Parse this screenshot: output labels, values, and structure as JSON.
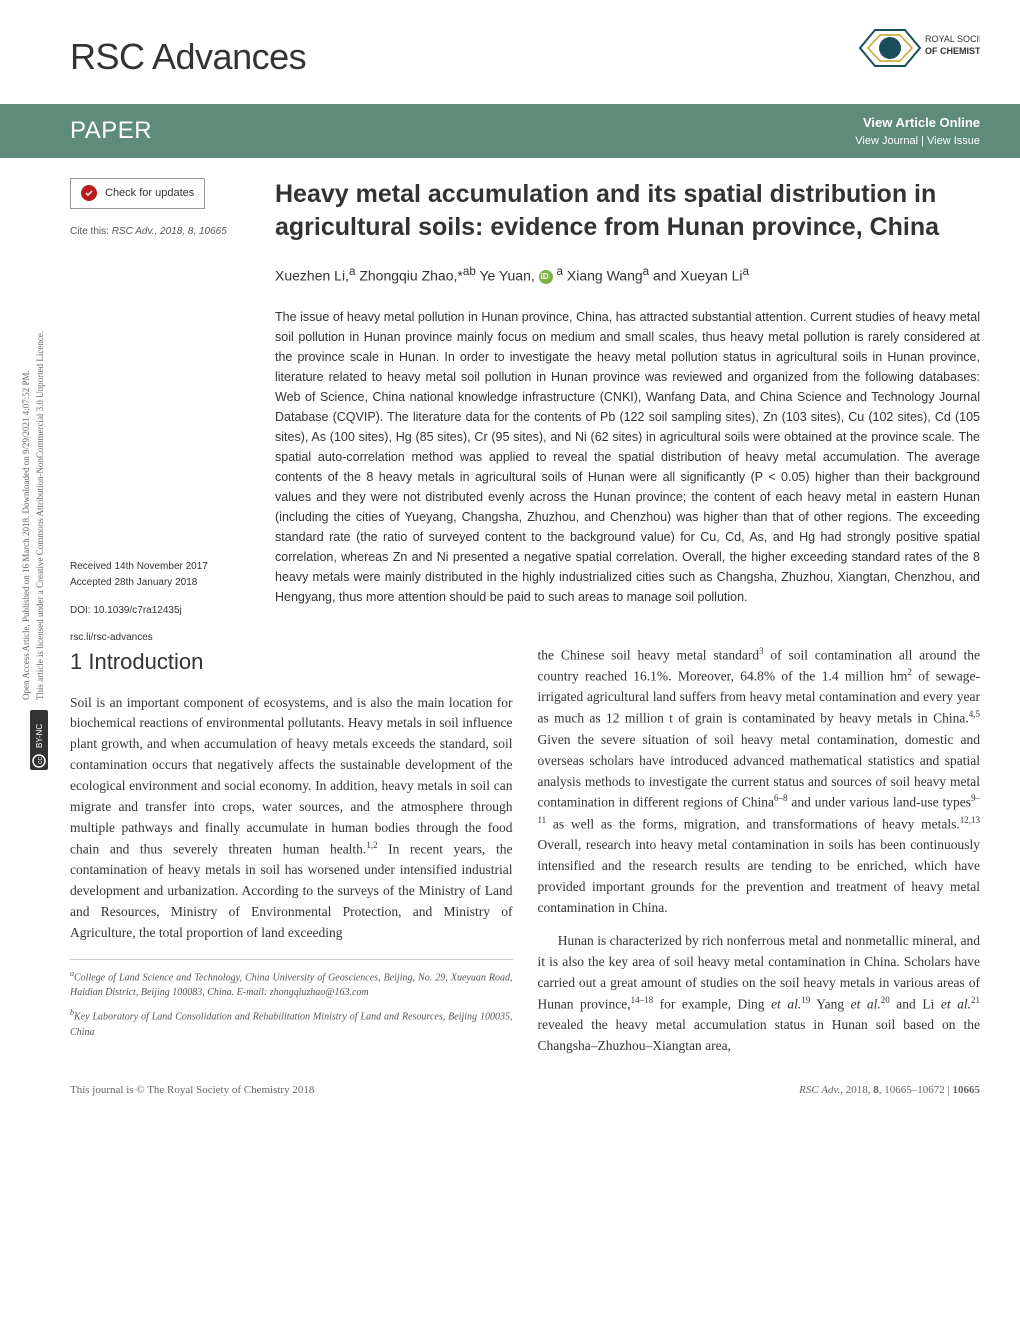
{
  "journal": {
    "title": "RSC Advances",
    "publisher_logo_text": "ROYAL SOCIETY OF CHEMISTRY"
  },
  "banner": {
    "label": "PAPER",
    "view_online": "View Article Online",
    "view_issue": "View Journal | View Issue",
    "bg_color": "#5f8b7a"
  },
  "sidebar": {
    "check_updates": "Check for updates",
    "cite_prefix": "Cite this:",
    "cite_text": "RSC Adv., 2018, 8, 10665",
    "received": "Received 14th November 2017",
    "accepted": "Accepted 28th January 2018",
    "doi": "DOI: 10.1039/c7ra12435j",
    "link": "rsc.li/rsc-advances"
  },
  "article": {
    "title": "Heavy metal accumulation and its spatial distribution in agricultural soils: evidence from Hunan province, China",
    "authors_html": "Xuezhen Li,<sup>a</sup> Zhongqiu Zhao,*<sup>ab</sup> Ye Yuan, <span class='orcid-icon'></span> <sup>a</sup> Xiang Wang<sup>a</sup> and Xueyan Li<sup>a</sup>",
    "abstract": "The issue of heavy metal pollution in Hunan province, China, has attracted substantial attention. Current studies of heavy metal soil pollution in Hunan province mainly focus on medium and small scales, thus heavy metal pollution is rarely considered at the province scale in Hunan. In order to investigate the heavy metal pollution status in agricultural soils in Hunan province, literature related to heavy metal soil pollution in Hunan province was reviewed and organized from the following databases: Web of Science, China national knowledge infrastructure (CNKI), Wanfang Data, and China Science and Technology Journal Database (CQVIP). The literature data for the contents of Pb (122 soil sampling sites), Zn (103 sites), Cu (102 sites), Cd (105 sites), As (100 sites), Hg (85 sites), Cr (95 sites), and Ni (62 sites) in agricultural soils were obtained at the province scale. The spatial auto-correlation method was applied to reveal the spatial distribution of heavy metal accumulation. The average contents of the 8 heavy metals in agricultural soils of Hunan were all significantly (P < 0.05) higher than their background values and they were not distributed evenly across the Hunan province; the content of each heavy metal in eastern Hunan (including the cities of Yueyang, Changsha, Zhuzhou, and Chenzhou) was higher than that of other regions. The exceeding standard rate (the ratio of surveyed content to the background value) for Cu, Cd, As, and Hg had strongly positive spatial correlation, whereas Zn and Ni presented a negative spatial correlation. Overall, the higher exceeding standard rates of the 8 heavy metals were mainly distributed in the highly industrialized cities such as Changsha, Zhuzhou, Xiangtan, Chenzhou, and Hengyang, thus more attention should be paid to such areas to manage soil pollution."
  },
  "section1": {
    "heading": "1   Introduction",
    "col1_text": "Soil is an important component of ecosystems, and is also the main location for biochemical reactions of environmental pollutants. Heavy metals in soil influence plant growth, and when accumulation of heavy metals exceeds the standard, soil contamination occurs that negatively affects the sustainable development of the ecological environment and social economy. In addition, heavy metals in soil can migrate and transfer into crops, water sources, and the atmosphere through multiple pathways and finally accumulate in human bodies through the food chain and thus severely threaten human health.<sup>1,2</sup> In recent years, the contamination of heavy metals in soil has worsened under intensified industrial development and urbanization. According to the surveys of the Ministry of Land and Resources, Ministry of Environmental Protection, and Ministry of Agriculture, the total proportion of land exceeding",
    "col2_text": "the Chinese soil heavy metal standard<sup>3</sup> of soil contamination all around the country reached 16.1%. Moreover, 64.8% of the 1.4 million hm<sup>2</sup> of sewage-irrigated agricultural land suffers from heavy metal contamination and every year as much as 12 million t of grain is contaminated by heavy metals in China.<sup>4,5</sup> Given the severe situation of soil heavy metal contamination, domestic and overseas scholars have introduced advanced mathematical statistics and spatial analysis methods to investigate the current status and sources of soil heavy metal contamination in different regions of China<sup>6–8</sup> and under various land-use types<sup>9–11</sup> as well as the forms, migration, and transformations of heavy metals.<sup>12,13</sup> Overall, research into heavy metal contamination in soils has been continuously intensified and the research results are tending to be enriched, which have provided important grounds for the prevention and treatment of heavy metal contamination in China.",
    "col2_text2": "Hunan is characterized by rich nonferrous metal and nonmetallic mineral, and it is also the key area of soil heavy metal contamination in China. Scholars have carried out a great amount of studies on the soil heavy metals in various areas of Hunan province,<sup>14–18</sup> for example, Ding <em>et al.</em><sup>19</sup> Yang <em>et al.</em><sup>20</sup> and Li <em>et al.</em><sup>21</sup> revealed the heavy metal accumulation status in Hunan soil based on the Changsha–Zhuzhou–Xiangtan area,"
  },
  "affiliations": {
    "a": "<sup>a</sup>College of Land Science and Technology, China University of Geosciences, Beijing, No. 29, Xueyuan Road, Haidian District, Beijing 100083, China. E-mail: zhongqiuzhao@163.com",
    "b": "<sup>b</sup>Key Laboratory of Land Consolidation and Rehabilitation Ministry of Land and Resources, Beijing 100035, China"
  },
  "footer": {
    "left": "This journal is © The Royal Society of Chemistry 2018",
    "right": "RSC Adv., 2018, 8, 10665–10672 | 10665"
  },
  "margin": {
    "open_access": "Open Access Article. Published on 16 March 2018. Downloaded on 9/29/2021 4:07:52 PM.",
    "license": "This article is licensed under a Creative Commons Attribution-NonCommercial 3.0 Unported Licence.",
    "cc_label": "BY-NC"
  },
  "colors": {
    "banner_bg": "#5f8b7a",
    "text": "#333333",
    "check_icon": "#b91c1c",
    "orcid": "#7cb342"
  }
}
